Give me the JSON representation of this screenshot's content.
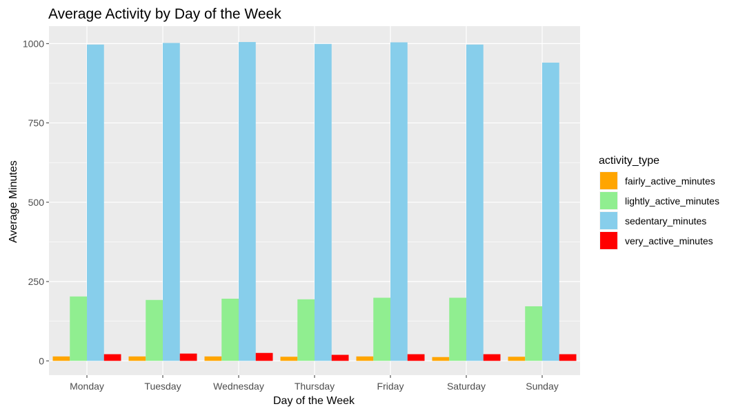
{
  "chart_data": {
    "type": "bar",
    "title": "Average Activity by Day of the Week",
    "xlabel": "Day of the Week",
    "ylabel": "Average Minutes",
    "categories": [
      "Monday",
      "Tuesday",
      "Wednesday",
      "Thursday",
      "Friday",
      "Saturday",
      "Sunday"
    ],
    "series": [
      {
        "name": "fairly_active_minutes",
        "color": "#FFA500",
        "values": [
          14,
          14,
          14,
          13,
          14,
          12,
          13
        ]
      },
      {
        "name": "lightly_active_minutes",
        "color": "#90EE90",
        "values": [
          203,
          192,
          196,
          194,
          199,
          199,
          172
        ]
      },
      {
        "name": "sedentary_minutes",
        "color": "#87CEEB",
        "values": [
          997,
          1002,
          1005,
          999,
          1004,
          997,
          940
        ]
      },
      {
        "name": "very_active_minutes",
        "color": "#FF0000",
        "values": [
          21,
          23,
          25,
          19,
          21,
          21,
          21
        ]
      }
    ],
    "ylim": [
      -45,
      1055
    ],
    "yticks": [
      0,
      250,
      500,
      750,
      1000
    ],
    "grid": true,
    "panel_background": "#EBEBEB",
    "legend": {
      "title": "activity_type",
      "position": "right"
    }
  }
}
